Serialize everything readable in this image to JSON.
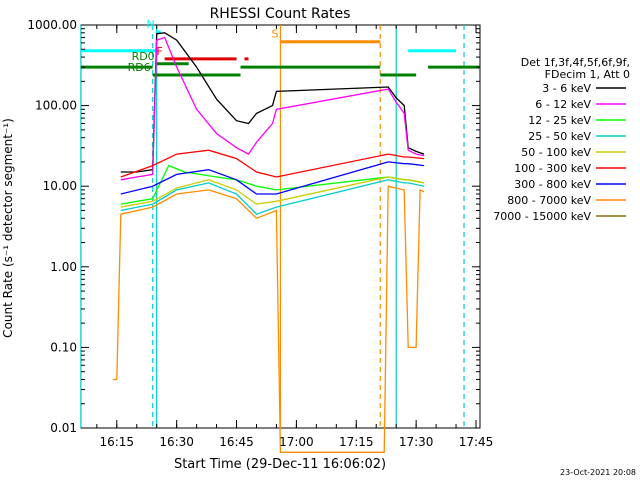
{
  "chart_data": {
    "type": "line",
    "title": "RHESSI Count Rates",
    "xlabel": "Start Time (29-Dec-11 16:06:02)",
    "ylabel": "Count Rate (s⁻¹ detector segment⁻¹)",
    "y_scale": "log",
    "ylim": [
      0.01,
      1000
    ],
    "xlim": [
      "16:06:02",
      "17:46:00"
    ],
    "x_ticks": [
      "16:15",
      "16:30",
      "16:45",
      "17:00",
      "17:15",
      "17:30",
      "17:45"
    ],
    "y_ticks": [
      "0.01",
      "0.10",
      "1.00",
      "10.00",
      "100.00",
      "1000.00"
    ],
    "legend_header": [
      "Det 1f,3f,4f,5f,6f,9f,",
      "FDecim 1, Att 0"
    ],
    "legend_position": "right",
    "footer": "23-Oct-2021 20:08",
    "series": [
      {
        "name": "3 - 6 keV",
        "color": "#000000",
        "x": [
          "16:16",
          "16:20",
          "16:24",
          "16:25",
          "16:27",
          "16:30",
          "16:35",
          "16:40",
          "16:45",
          "16:48",
          "16:50",
          "16:54",
          "16:55",
          "17:23",
          "17:25",
          "17:27",
          "17:28",
          "17:30",
          "17:32"
        ],
        "y": [
          15,
          15,
          16,
          780,
          800,
          650,
          300,
          120,
          65,
          60,
          80,
          100,
          150,
          170,
          125,
          100,
          30,
          27,
          25
        ]
      },
      {
        "name": "6 - 12 keV",
        "color": "#ff00ff",
        "x": [
          "16:16",
          "16:20",
          "16:24",
          "16:25",
          "16:27",
          "16:30",
          "16:35",
          "16:40",
          "16:45",
          "16:48",
          "16:50",
          "16:54",
          "16:55",
          "17:23",
          "17:25",
          "17:27",
          "17:28",
          "17:30",
          "17:32"
        ],
        "y": [
          12,
          13,
          14,
          650,
          700,
          300,
          90,
          45,
          30,
          25,
          35,
          60,
          90,
          160,
          110,
          80,
          28,
          25,
          24
        ]
      },
      {
        "name": "12 - 25 keV",
        "color": "#00ff00",
        "x": [
          "16:16",
          "16:24",
          "16:28",
          "16:32",
          "16:40",
          "16:45",
          "16:50",
          "16:55",
          "17:23",
          "17:27",
          "17:28",
          "17:32"
        ],
        "y": [
          6,
          7,
          18,
          15,
          13,
          12,
          10,
          9,
          13,
          12,
          12,
          11
        ]
      },
      {
        "name": "25 - 50 keV",
        "color": "#00cccc",
        "x": [
          "16:16",
          "16:24",
          "16:30",
          "16:38",
          "16:45",
          "16:50",
          "16:55",
          "17:23",
          "17:27",
          "17:28",
          "17:32"
        ],
        "y": [
          5,
          6,
          9,
          11,
          8,
          4.5,
          5.5,
          12,
          11,
          11,
          10
        ]
      },
      {
        "name": "50 - 100 keV",
        "color": "#cccc00",
        "x": [
          "16:16",
          "16:24",
          "16:30",
          "16:38",
          "16:45",
          "16:50",
          "16:55",
          "17:23",
          "17:27",
          "17:28",
          "17:32"
        ],
        "y": [
          5.5,
          6.5,
          9.5,
          12,
          9,
          6,
          6.5,
          13,
          12,
          12,
          11
        ]
      },
      {
        "name": "100 - 300 keV",
        "color": "#ff0000",
        "x": [
          "16:16",
          "16:24",
          "16:30",
          "16:38",
          "16:45",
          "16:50",
          "16:55",
          "17:23",
          "17:27",
          "17:28",
          "17:32"
        ],
        "y": [
          13,
          18,
          25,
          28,
          22,
          15,
          13,
          25,
          23,
          23,
          22
        ]
      },
      {
        "name": "300 - 800 keV",
        "color": "#0000ff",
        "x": [
          "16:16",
          "16:24",
          "16:30",
          "16:38",
          "16:45",
          "16:50",
          "16:55",
          "17:23",
          "17:27",
          "17:28",
          "17:32"
        ],
        "y": [
          8,
          10,
          14,
          16,
          12,
          8,
          8,
          20,
          19,
          19,
          18
        ]
      },
      {
        "name": "800 - 7000 keV",
        "color": "#ff8c00",
        "x": [
          "16:14",
          "16:15",
          "16:16",
          "16:24",
          "16:30",
          "16:38",
          "16:45",
          "16:50",
          "16:55",
          "16:56",
          "17:22",
          "17:23",
          "17:27",
          "17:28",
          "17:30",
          "17:31",
          "17:32"
        ],
        "y": [
          0.04,
          0.04,
          4.5,
          5.5,
          8,
          9,
          7,
          4,
          5,
          0.001,
          0.001,
          10,
          9,
          0.1,
          0.1,
          9,
          8.5
        ]
      },
      {
        "name": "7000 - 15000 keV",
        "color": "#8b6914",
        "x": [],
        "y": []
      }
    ],
    "annotations": {
      "flags": [
        {
          "label": "N",
          "color": "#00ffff",
          "start": "16:25",
          "end": "16:26"
        },
        {
          "label": "F",
          "color": "#e00000",
          "start": "16:27",
          "end": "16:45"
        },
        {
          "label": "",
          "color": "#e00000",
          "start": "16:47",
          "end": "16:48"
        },
        {
          "label": "RD0",
          "color": "#008000",
          "start": "16:25",
          "end": "16:33"
        },
        {
          "label": "RD6",
          "color": "#008000",
          "start": "16:24",
          "end": "16:46"
        },
        {
          "label": "S",
          "color": "#ff8c00",
          "start": "16:56",
          "end": "17:21"
        }
      ],
      "lines": [
        {
          "type": "cyan-bar",
          "color": "#00ffff",
          "segments": [
            [
              "16:06",
              "16:24"
            ],
            [
              "16:24",
              "16:25"
            ],
            [
              "17:28",
              "17:40"
            ]
          ],
          "level": 480
        },
        {
          "type": "green-bar-top",
          "color": "#008000",
          "segments": [
            [
              "16:06",
              "16:24"
            ],
            [
              "16:46",
              "17:21"
            ],
            [
              "17:33",
              "17:46"
            ]
          ],
          "level": 300
        },
        {
          "type": "green-bar-bottom",
          "color": "#008000",
          "segments": [
            [
              "17:21",
              "17:30"
            ]
          ],
          "level": 240
        }
      ]
    },
    "vlines": [
      {
        "time": "16:24",
        "color": "#00cccc",
        "style": "dashed"
      },
      {
        "time": "16:25",
        "color": "#00cccc",
        "style": "solid"
      },
      {
        "time": "16:56",
        "color": "#ff8c00",
        "style": "solid"
      },
      {
        "time": "17:21",
        "color": "#ff8c00",
        "style": "dashed"
      },
      {
        "time": "17:25",
        "color": "#00cccc",
        "style": "solid"
      },
      {
        "time": "17:42",
        "color": "#00cccc",
        "style": "dashed"
      },
      {
        "time": "16:06",
        "color": "#00cccc",
        "style": "solid"
      }
    ]
  }
}
